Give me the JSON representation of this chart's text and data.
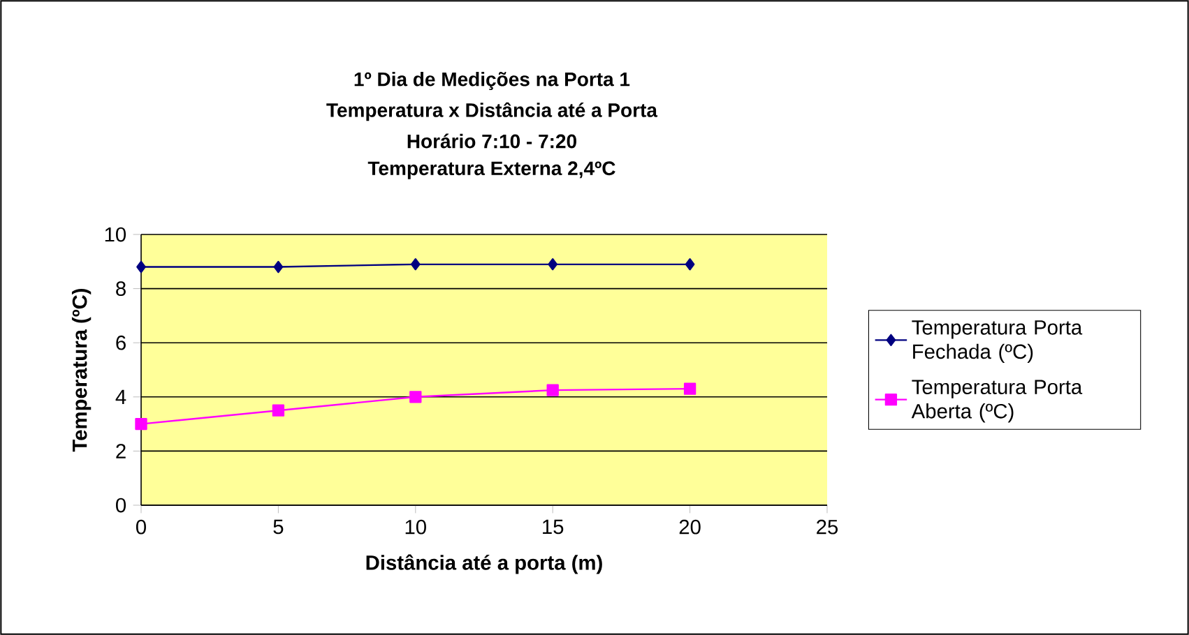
{
  "chart_data": {
    "type": "line",
    "title": "1º Dia de Medições na Porta 1",
    "subtitle": "Temperatura x Distância até a Porta",
    "annotations": [
      "Horário 7:10 - 7:20",
      "Temperatura Externa 2,4ºC"
    ],
    "xlabel": "Distância até a porta (m)",
    "ylabel": "Temperatura (ºC)",
    "x": [
      0,
      5,
      10,
      15,
      20
    ],
    "series": [
      {
        "name": "Temperatura Porta Fechada (ºC)",
        "color": "#000080",
        "marker": "diamond",
        "values": [
          8.8,
          8.8,
          8.9,
          8.9,
          8.9
        ]
      },
      {
        "name": "Temperatura Porta Aberta (ºC)",
        "color": "#ff00ff",
        "marker": "square",
        "values": [
          3.0,
          3.5,
          4.0,
          4.25,
          4.3
        ]
      }
    ],
    "xlim": [
      0,
      25
    ],
    "xticks": [
      0,
      5,
      10,
      15,
      20,
      25
    ],
    "ylim": [
      0,
      10
    ],
    "yticks": [
      0,
      2,
      4,
      6,
      8,
      10
    ],
    "grid": "y",
    "legend": "right",
    "line_style": "solid"
  }
}
